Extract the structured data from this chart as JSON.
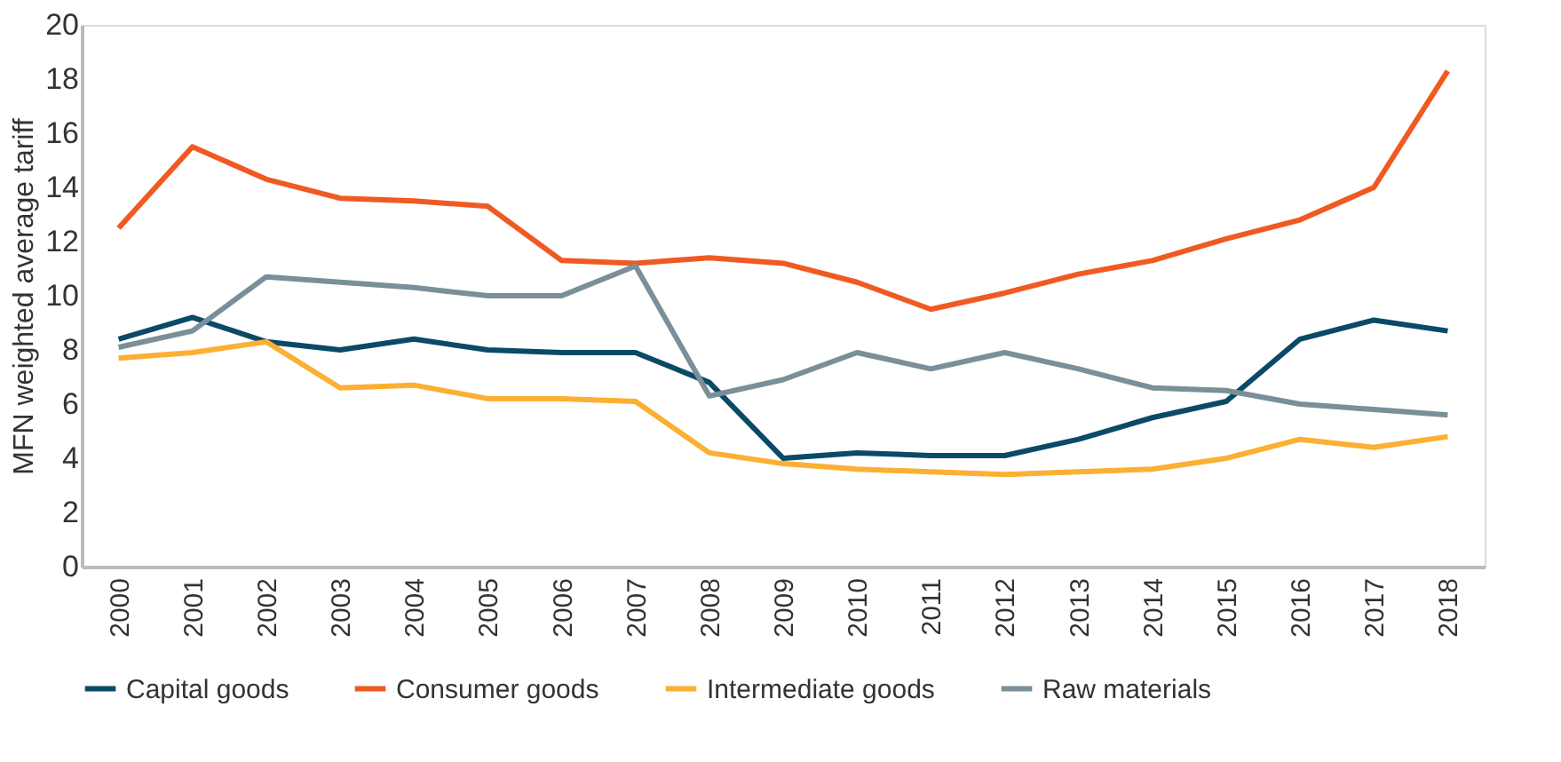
{
  "chart_data": {
    "type": "line",
    "ylabel": "MFN weighted average tariff",
    "categories": [
      "2000",
      "2001",
      "2002",
      "2003",
      "2004",
      "2005",
      "2006",
      "2007",
      "2008",
      "2009",
      "2010",
      "2011",
      "2012",
      "2013",
      "2014",
      "2015",
      "2016",
      "2017",
      "2018"
    ],
    "series": [
      {
        "name": "Capital goods",
        "color": "#0b4a66",
        "values": [
          8.4,
          9.2,
          8.3,
          8.0,
          8.4,
          8.0,
          7.9,
          7.9,
          6.8,
          4.0,
          4.2,
          4.1,
          4.1,
          4.7,
          5.5,
          6.1,
          8.4,
          9.1,
          8.7
        ]
      },
      {
        "name": "Consumer goods",
        "color": "#f05a22",
        "values": [
          12.5,
          15.5,
          14.3,
          13.6,
          13.5,
          13.3,
          11.3,
          11.2,
          11.4,
          11.2,
          10.5,
          9.5,
          10.1,
          10.8,
          11.3,
          12.1,
          12.8,
          14.0,
          18.3
        ]
      },
      {
        "name": "Intermediate goods",
        "color": "#fbb034",
        "values": [
          7.7,
          7.9,
          8.3,
          6.6,
          6.7,
          6.2,
          6.2,
          6.1,
          4.2,
          3.8,
          3.6,
          3.5,
          3.4,
          3.5,
          3.6,
          4.0,
          4.7,
          4.4,
          4.8
        ]
      },
      {
        "name": "Raw materials",
        "color": "#7a8f99",
        "values": [
          8.1,
          8.7,
          10.7,
          10.5,
          10.3,
          10.0,
          10.0,
          11.1,
          6.3,
          6.9,
          7.9,
          7.3,
          7.9,
          7.3,
          6.6,
          6.5,
          6.0,
          5.8,
          5.6
        ]
      }
    ],
    "ylim": [
      0,
      20
    ],
    "yticks": [
      0,
      2,
      4,
      6,
      8,
      10,
      12,
      14,
      16,
      18,
      20
    ],
    "grid": false,
    "legend": "bottom",
    "marker": "none",
    "line_style": "solid"
  }
}
